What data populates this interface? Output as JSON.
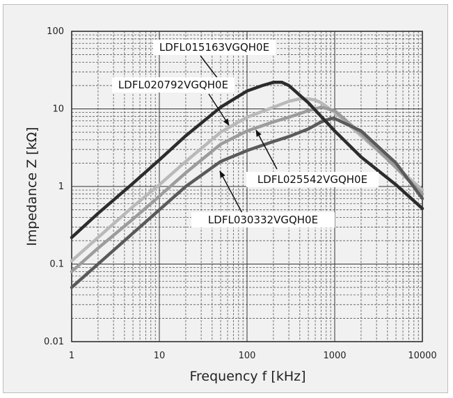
{
  "chart_data": {
    "type": "line",
    "xscale": "log",
    "yscale": "log",
    "xlabel": "Frequency f [kHz]",
    "ylabel": "Impedance Z [kΩ]",
    "xlim": [
      1,
      10000
    ],
    "ylim": [
      0.01,
      100
    ],
    "x_ticks": [
      "1",
      "10",
      "100",
      "1000",
      "10000"
    ],
    "y_ticks": [
      "100",
      "10",
      "1",
      "0.1",
      "0.01"
    ],
    "grid": true,
    "series": [
      {
        "name": "LDFL015163VGQH0E",
        "color": "#2c2c2c",
        "x": [
          1,
          2,
          5,
          10,
          20,
          50,
          100,
          150,
          200,
          250,
          300,
          400,
          500,
          700,
          1000,
          2000,
          5000,
          10000
        ],
        "y": [
          0.22,
          0.45,
          1.1,
          2.2,
          4.5,
          10.5,
          17,
          20,
          22,
          22,
          20,
          15,
          12,
          8,
          5.2,
          2.4,
          1.05,
          0.52
        ]
      },
      {
        "name": "LDFL020792VGQH0E",
        "color": "#b9b9b9",
        "x": [
          1,
          2,
          5,
          10,
          20,
          50,
          100,
          200,
          300,
          400,
          500,
          600,
          700,
          1000,
          2000,
          5000,
          10000
        ],
        "y": [
          0.11,
          0.22,
          0.55,
          1.05,
          2.1,
          5,
          7.8,
          10.5,
          12.5,
          13.5,
          13.5,
          13,
          12,
          9,
          4.5,
          1.8,
          0.9
        ]
      },
      {
        "name": "LDFL025542VGQH0E",
        "color": "#9c9c9c",
        "x": [
          1,
          2,
          5,
          10,
          20,
          50,
          100,
          200,
          300,
          500,
          700,
          1000,
          2000,
          5000,
          10000
        ],
        "y": [
          0.08,
          0.16,
          0.38,
          0.75,
          1.5,
          3.5,
          5.2,
          6.8,
          7.8,
          9.5,
          10.5,
          9.5,
          4.8,
          1.75,
          0.8
        ]
      },
      {
        "name": "LDFL030332VGQH0E",
        "color": "#5a5a5a",
        "x": [
          1,
          2,
          5,
          10,
          20,
          50,
          100,
          200,
          300,
          500,
          700,
          900,
          1000,
          2000,
          5000,
          10000
        ],
        "y": [
          0.05,
          0.1,
          0.25,
          0.5,
          1.0,
          2.1,
          2.9,
          3.8,
          4.4,
          5.5,
          6.8,
          7.5,
          7.5,
          5.2,
          2.0,
          0.7
        ]
      }
    ],
    "annotations": [
      {
        "text": "LDFL015163VGQH0E",
        "series": 0
      },
      {
        "text": "LDFL020792VGQH0E",
        "series": 1
      },
      {
        "text": "LDFL025542VGQH0E",
        "series": 2
      },
      {
        "text": "LDFL030332VGQH0E",
        "series": 3
      }
    ]
  }
}
